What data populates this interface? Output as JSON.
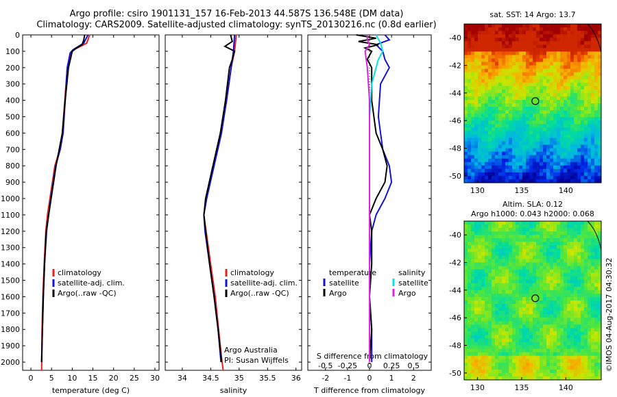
{
  "header": {
    "title_line1": "Argo profile: csiro 1901131_157 16-Feb-2013 44.587S 136.548E (DM data)",
    "title_line2": "Climatology: CARS2009. Satellite-adjusted climatology: synTS_20130216.nc (0.8d earlier)"
  },
  "colors": {
    "climatology": "#ee1c1c",
    "satellite": "#1010d8",
    "argo": "#000000",
    "salinity_satellite": "#00e5e5",
    "salinity_argo": "#e020e0"
  },
  "chart_data": [
    {
      "type": "line",
      "name": "temperature-profile",
      "xlabel": "temperature (deg C)",
      "ylabel": "",
      "xlim": [
        -2,
        31
      ],
      "ylim": [
        2050,
        0
      ],
      "xticks": [
        0,
        5,
        10,
        15,
        20,
        25,
        30
      ],
      "yticks": [
        0,
        100,
        200,
        300,
        400,
        500,
        600,
        700,
        800,
        900,
        1000,
        1100,
        1200,
        1300,
        1400,
        1500,
        1600,
        1700,
        1800,
        1900,
        2000
      ],
      "legend": [
        "climatology",
        "satellite-adj. clim.",
        "Argo(..raw -QC)"
      ],
      "series": [
        {
          "name": "climatology",
          "color_key": "climatology",
          "depth": [
            0,
            50,
            90,
            110,
            200,
            400,
            600,
            700,
            800,
            1000,
            1100,
            1200,
            1400,
            1600,
            1800,
            2050
          ],
          "values": [
            14.2,
            13.5,
            10.5,
            9.6,
            8.8,
            8.2,
            7.6,
            7.0,
            5.8,
            4.6,
            4.0,
            3.6,
            3.2,
            2.9,
            2.7,
            2.6
          ]
        },
        {
          "name": "satellite-adj. clim.",
          "color_key": "satellite",
          "depth": [
            0,
            50,
            90,
            110,
            200,
            400,
            600,
            700,
            800,
            1000,
            1100,
            1200,
            1400,
            1600,
            1800,
            2000
          ],
          "values": [
            13.8,
            12.8,
            10.2,
            9.5,
            8.8,
            8.3,
            7.8,
            7.1,
            6.0,
            4.8,
            4.3,
            3.8,
            3.3,
            3.0,
            2.8,
            2.6
          ]
        },
        {
          "name": "Argo(..raw -QC)",
          "color_key": "argo",
          "depth": [
            0,
            30,
            60,
            80,
            100,
            200,
            400,
            600,
            800,
            1000,
            1200,
            1400,
            1600,
            1800,
            2000
          ],
          "values": [
            13.0,
            12.8,
            12.4,
            11.0,
            10.0,
            9.1,
            8.3,
            7.6,
            6.1,
            4.9,
            3.7,
            3.3,
            3.0,
            2.8,
            2.6
          ]
        }
      ]
    },
    {
      "type": "line",
      "name": "salinity-profile",
      "xlabel": "salinity",
      "xlim": [
        33.7,
        36.1
      ],
      "ylim": [
        2050,
        0
      ],
      "xticks": [
        34,
        34.5,
        35,
        35.5,
        36
      ],
      "legend": [
        "climatology",
        "satellite-adj. clim.",
        "Argo(..raw -QC)"
      ],
      "series": [
        {
          "name": "climatology",
          "color_key": "climatology",
          "depth": [
            0,
            100,
            200,
            400,
            600,
            800,
            1000,
            1100,
            1200,
            1400,
            1600,
            1800,
            2000,
            2050
          ],
          "values": [
            34.95,
            34.92,
            34.86,
            34.78,
            34.68,
            34.55,
            34.42,
            34.38,
            34.42,
            34.5,
            34.58,
            34.64,
            34.7,
            34.72
          ]
        },
        {
          "name": "satellite-adj. clim.",
          "color_key": "satellite",
          "depth": [
            0,
            100,
            200,
            400,
            600,
            800,
            1000,
            1100,
            1200,
            1400,
            1600,
            1800,
            2000
          ],
          "values": [
            34.92,
            34.9,
            34.86,
            34.78,
            34.69,
            34.56,
            34.43,
            34.38,
            34.4,
            34.48,
            34.56,
            34.63,
            34.68
          ]
        },
        {
          "name": "Argo(..raw -QC)",
          "color_key": "argo",
          "depth": [
            0,
            40,
            70,
            100,
            150,
            200,
            400,
            600,
            800,
            1000,
            1100,
            1200,
            1400,
            1600,
            1800,
            2000
          ],
          "values": [
            34.85,
            34.88,
            34.75,
            34.92,
            34.88,
            34.83,
            34.76,
            34.67,
            34.54,
            34.41,
            34.38,
            34.41,
            34.48,
            34.56,
            34.63,
            34.69
          ]
        }
      ]
    },
    {
      "type": "line",
      "name": "difference-profile",
      "xlabel": "T difference from climatology",
      "top_axis_label": "S difference from climatology",
      "xlim": [
        -2.8,
        2.8
      ],
      "ylim": [
        2050,
        0
      ],
      "xticks": [
        -2,
        -1,
        0,
        1,
        2
      ],
      "xtick_labels": [
        "-2",
        "-1",
        "0",
        "1",
        "2"
      ],
      "sticks": [
        -0.5,
        -0.25,
        0,
        0.25,
        0.5
      ],
      "stick_labels": [
        "-0.5",
        "-0.25",
        "0",
        "0.25",
        "0.5"
      ],
      "legend": {
        "temperature": "temperature",
        "salinity": "salinity",
        "satellite": "satellite",
        "argo": "Argo"
      },
      "series": [
        {
          "name": "T satellite",
          "color_key": "satellite",
          "depth": [
            0,
            30,
            60,
            100,
            150,
            200,
            300,
            500,
            700,
            800,
            900,
            1000,
            1100,
            1200,
            1400,
            1600,
            1800,
            2000
          ],
          "values": [
            0.7,
            0.9,
            0.3,
            0.6,
            0.7,
            0.9,
            0.5,
            0.4,
            0.6,
            0.9,
            1.0,
            0.7,
            0.3,
            0.1,
            0.0,
            0.0,
            0.1,
            0.1
          ]
        },
        {
          "name": "T Argo",
          "color_key": "argo",
          "depth": [
            0,
            20,
            40,
            60,
            80,
            100,
            150,
            200,
            400,
            600,
            700,
            800,
            900,
            1000,
            1100,
            1200,
            1400,
            1600,
            1800,
            2000
          ],
          "values": [
            -0.6,
            0.3,
            -0.5,
            0.4,
            -0.2,
            0.1,
            -0.1,
            0.1,
            0.1,
            0.3,
            0.6,
            0.8,
            0.7,
            0.3,
            0.0,
            0.1,
            0.1,
            0.0,
            0.1,
            0.0
          ]
        },
        {
          "name": "S satellite",
          "color_key": "salinity_satellite",
          "depth": [
            0,
            50,
            100,
            150,
            200,
            300,
            500,
            800,
            1000,
            1100,
            1200,
            1400,
            1600,
            1800,
            2000
          ],
          "values": [
            0.3,
            0.5,
            0.6,
            0.4,
            0.3,
            0.1,
            0.0,
            0.0,
            0.0,
            0.0,
            0.0,
            0.0,
            0.0,
            0.0,
            0.0
          ]
        },
        {
          "name": "S Argo",
          "color_key": "salinity_argo",
          "depth": [
            0,
            30,
            60,
            100,
            200,
            400,
            600,
            800,
            1000,
            1200,
            1500,
            2000
          ],
          "values": [
            -0.1,
            -0.1,
            0.0,
            -0.2,
            -0.1,
            0.0,
            0.0,
            0.0,
            0.0,
            0.0,
            0.0,
            0.0
          ]
        }
      ]
    },
    {
      "type": "heatmap",
      "name": "sst-map",
      "title": "sat. SST: 14 Argo: 13.7",
      "xlim": [
        128.5,
        144
      ],
      "ylim": [
        -50.5,
        -39
      ],
      "xticks": [
        130,
        135,
        140
      ],
      "yticks": [
        -40,
        -42,
        -44,
        -46,
        -48,
        -50
      ],
      "marker": {
        "lon": 136.548,
        "lat": -44.587
      }
    },
    {
      "type": "heatmap",
      "name": "sla-map",
      "title_line1": "Altim. SLA: 0.12",
      "title_line2": "Argo h1000: 0.043 h2000: 0.068",
      "xlim": [
        128.5,
        144
      ],
      "ylim": [
        -50.5,
        -39
      ],
      "xticks": [
        130,
        135,
        140
      ],
      "yticks": [
        -40,
        -42,
        -44,
        -46,
        -48,
        -50
      ],
      "marker": {
        "lon": 136.548,
        "lat": -44.587
      }
    }
  ],
  "credit": {
    "org_line1": "Argo Australia",
    "org_line2": "PI: Susan Wijffels",
    "timestamp": "©IMOS 04-Aug-2017 04:30:32"
  }
}
